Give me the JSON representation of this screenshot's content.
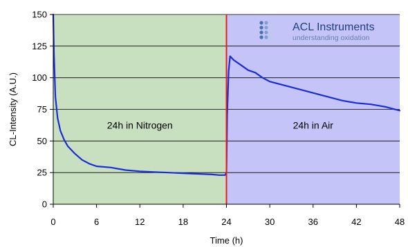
{
  "chart_data": {
    "type": "line",
    "title": "",
    "xlabel": "Time (h)",
    "ylabel": "CL-Intensity (A.U.)",
    "xlim": [
      0,
      48
    ],
    "ylim": [
      0,
      150
    ],
    "xticks": [
      0,
      6,
      12,
      18,
      24,
      30,
      36,
      42,
      48
    ],
    "yticks": [
      0,
      25,
      50,
      75,
      100,
      125,
      150
    ],
    "grid": true,
    "regions": [
      {
        "label": "24h in Nitrogen",
        "x_start": 0,
        "x_end": 24,
        "color": "#c8e0c0"
      },
      {
        "label": "24h in Air",
        "x_start": 24,
        "x_end": 48,
        "color": "#c4c4f8"
      }
    ],
    "divider": {
      "x": 24,
      "color": "#e02020"
    },
    "series": [
      {
        "name": "",
        "color": "#1a2bd8",
        "x": [
          0,
          0.1,
          0.3,
          0.6,
          1,
          1.5,
          2,
          3,
          4,
          5,
          6,
          8,
          10,
          12,
          14,
          16,
          18,
          20,
          22,
          23,
          23.8,
          24,
          24.1,
          24.3,
          24.5,
          25,
          26,
          27,
          28,
          29,
          30,
          32,
          34,
          36,
          38,
          40,
          42,
          44,
          46,
          48
        ],
        "y": [
          150,
          120,
          85,
          68,
          58,
          51,
          46,
          40,
          35,
          32,
          30,
          29,
          27,
          26,
          25.5,
          25,
          24.5,
          24,
          23.5,
          23,
          23,
          25,
          70,
          105,
          117,
          114,
          110,
          106,
          104,
          100,
          97,
          94,
          91,
          88,
          85,
          82,
          80,
          79,
          77,
          74
        ]
      }
    ]
  },
  "logo": {
    "title": "ACL Instruments",
    "subtitle": "understanding oxidation",
    "dot_colors": [
      "#4a6fb0",
      "#7fa0d0",
      "#b9cbe6"
    ]
  },
  "colors": {
    "grid": "#000000",
    "axis": "#000000"
  }
}
